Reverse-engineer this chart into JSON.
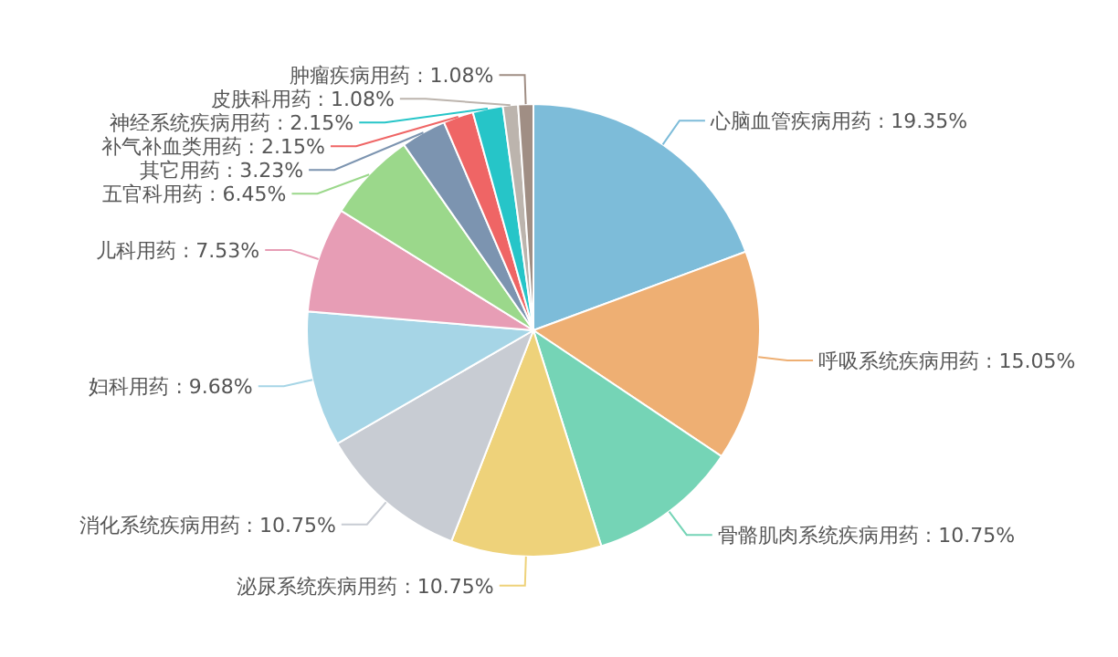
{
  "chart_data": {
    "type": "pie",
    "categories": [
      "心脑血管疾病用药",
      "呼吸系统疾病用药",
      "骨骼肌肉系统疾病用药",
      "泌尿系统疾病用药",
      "消化系统疾病用药",
      "妇科用药",
      "儿科用药",
      "五官科用药",
      "其它用药",
      "补气补血类用药",
      "神经系统疾病用药",
      "皮肤科用药",
      "肿瘤疾病用药"
    ],
    "values": [
      19.35,
      15.05,
      10.75,
      10.75,
      10.75,
      9.68,
      7.53,
      6.45,
      3.23,
      2.15,
      2.15,
      1.08,
      1.08
    ],
    "value_labels": [
      "19.35%",
      "15.05%",
      "10.75%",
      "10.75%",
      "10.75%",
      "9.68%",
      "7.53%",
      "6.45%",
      "3.23%",
      "2.15%",
      "2.15%",
      "1.08%",
      "1.08%"
    ],
    "colors": [
      "#7dbcd9",
      "#eeaf73",
      "#75d4b6",
      "#eed27a",
      "#c8ccd3",
      "#a6d5e6",
      "#e79db5",
      "#9bd88b",
      "#7c94b0",
      "#ef6565",
      "#26c5c8",
      "#bcb4ad",
      "#a08e84"
    ]
  }
}
